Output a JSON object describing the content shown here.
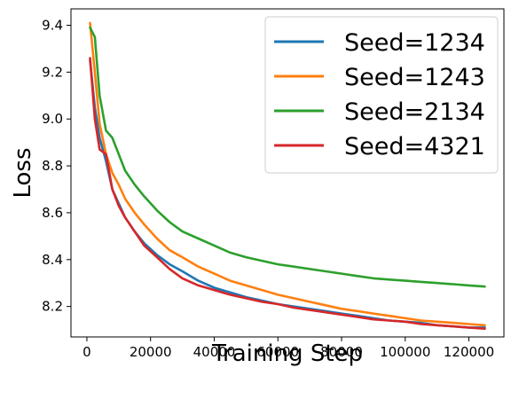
{
  "chart_data": {
    "type": "line",
    "title": "",
    "xlabel": "Training Step",
    "ylabel": "Loss",
    "xlim": [
      -5000,
      131000
    ],
    "ylim": [
      8.07,
      9.47
    ],
    "xticks": [
      0,
      20000,
      40000,
      60000,
      80000,
      100000,
      120000
    ],
    "xtick_labels": [
      "0",
      "20000",
      "40000",
      "60000",
      "80000",
      "100000",
      "120000"
    ],
    "yticks": [
      8.2,
      8.4,
      8.6,
      8.8,
      9.0,
      9.2,
      9.4
    ],
    "ytick_labels": [
      "8.2",
      "8.4",
      "8.6",
      "8.8",
      "9.0",
      "9.2",
      "9.4"
    ],
    "grid": false,
    "legend_position": "top-right",
    "series": [
      {
        "name": "Seed=1234",
        "color": "#1f77b4",
        "x": [
          1000,
          2500,
          4000,
          6000,
          8000,
          10000,
          12000,
          15000,
          18000,
          22000,
          26000,
          30000,
          35000,
          40000,
          45000,
          50000,
          55000,
          60000,
          65000,
          70000,
          75000,
          80000,
          85000,
          90000,
          95000,
          100000,
          105000,
          110000,
          115000,
          120000,
          125000
        ],
        "y": [
          9.25,
          9.05,
          8.92,
          8.82,
          8.7,
          8.64,
          8.58,
          8.52,
          8.47,
          8.42,
          8.38,
          8.35,
          8.31,
          8.28,
          8.26,
          8.24,
          8.225,
          8.21,
          8.2,
          8.19,
          8.18,
          8.17,
          8.16,
          8.15,
          8.14,
          8.135,
          8.13,
          8.12,
          8.115,
          8.11,
          8.11
        ]
      },
      {
        "name": "Seed=1243",
        "color": "#ff7f0e",
        "x": [
          1000,
          2500,
          4000,
          6000,
          8000,
          10000,
          12000,
          15000,
          18000,
          22000,
          26000,
          30000,
          35000,
          40000,
          45000,
          50000,
          55000,
          60000,
          65000,
          70000,
          75000,
          80000,
          85000,
          90000,
          95000,
          100000,
          105000,
          110000,
          115000,
          120000,
          125000
        ],
        "y": [
          9.41,
          9.2,
          8.98,
          8.85,
          8.77,
          8.72,
          8.66,
          8.6,
          8.55,
          8.49,
          8.44,
          8.41,
          8.37,
          8.34,
          8.31,
          8.29,
          8.27,
          8.25,
          8.235,
          8.22,
          8.205,
          8.19,
          8.18,
          8.17,
          8.16,
          8.15,
          8.14,
          8.135,
          8.13,
          8.125,
          8.12
        ]
      },
      {
        "name": "Seed=2134",
        "color": "#2ca02c",
        "x": [
          1000,
          2500,
          4000,
          6000,
          8000,
          10000,
          12000,
          15000,
          18000,
          22000,
          26000,
          30000,
          35000,
          40000,
          45000,
          50000,
          55000,
          60000,
          65000,
          70000,
          75000,
          80000,
          85000,
          90000,
          95000,
          100000,
          105000,
          110000,
          115000,
          120000,
          125000
        ],
        "y": [
          9.39,
          9.35,
          9.1,
          8.95,
          8.92,
          8.85,
          8.78,
          8.72,
          8.67,
          8.61,
          8.56,
          8.52,
          8.49,
          8.46,
          8.43,
          8.41,
          8.395,
          8.38,
          8.37,
          8.36,
          8.35,
          8.34,
          8.33,
          8.32,
          8.315,
          8.31,
          8.305,
          8.3,
          8.295,
          8.29,
          8.285
        ]
      },
      {
        "name": "Seed=4321",
        "color": "#d62728",
        "x": [
          1000,
          2500,
          4000,
          6000,
          8000,
          10000,
          12000,
          15000,
          18000,
          22000,
          26000,
          30000,
          35000,
          40000,
          45000,
          50000,
          55000,
          60000,
          65000,
          70000,
          75000,
          80000,
          85000,
          90000,
          95000,
          100000,
          105000,
          110000,
          115000,
          120000,
          125000
        ],
        "y": [
          9.26,
          9.0,
          8.87,
          8.85,
          8.7,
          8.63,
          8.58,
          8.52,
          8.46,
          8.41,
          8.36,
          8.32,
          8.29,
          8.27,
          8.25,
          8.235,
          8.22,
          8.21,
          8.195,
          8.185,
          8.175,
          8.165,
          8.155,
          8.145,
          8.14,
          8.135,
          8.125,
          8.12,
          8.115,
          8.11,
          8.105
        ]
      }
    ]
  }
}
